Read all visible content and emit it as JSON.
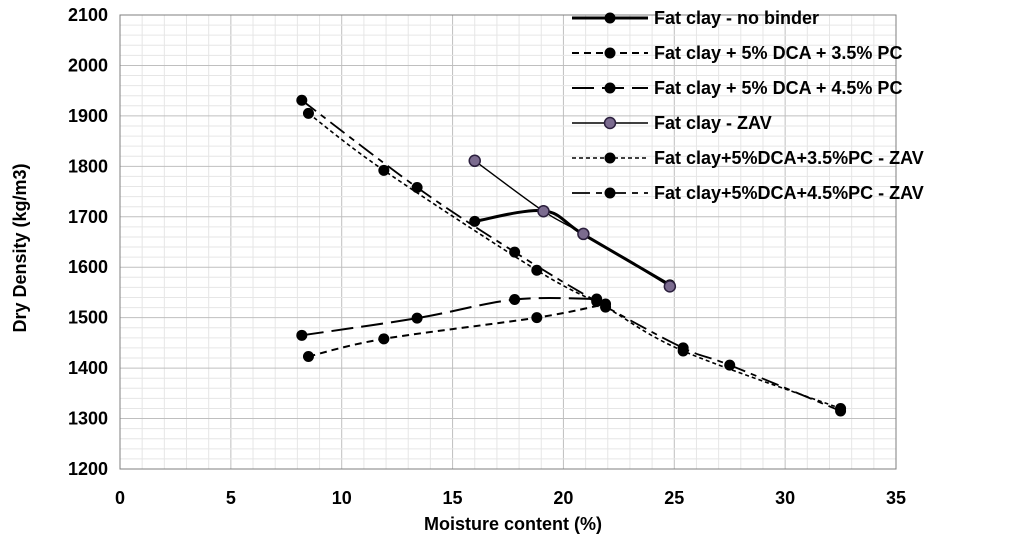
{
  "chart_data": {
    "type": "scatter",
    "title": "",
    "xlabel": "Moisture content (%)",
    "ylabel": "Dry Density (kg/m3)",
    "xlim": [
      0,
      35
    ],
    "ylim": [
      1200,
      2100
    ],
    "xticks": [
      0,
      5,
      10,
      15,
      20,
      25,
      30,
      35
    ],
    "yticks": [
      1200,
      1300,
      1400,
      1500,
      1600,
      1700,
      1800,
      1900,
      2000,
      2100
    ],
    "grid": true,
    "legend_position": "top-right",
    "series": [
      {
        "name": "Fat clay - no binder",
        "style": "solid-thick",
        "marker": "black",
        "x": [
          16.0,
          19.1,
          20.9,
          24.8
        ],
        "y": [
          1691,
          1712,
          1665,
          1565
        ]
      },
      {
        "name": "Fat clay + 5% DCA + 3.5% PC",
        "style": "dashed-short",
        "marker": "black",
        "x": [
          8.5,
          11.9,
          18.8,
          21.9
        ],
        "y": [
          1423,
          1458,
          1500,
          1527
        ]
      },
      {
        "name": "Fat clay + 5% DCA + 4.5% PC",
        "style": "dashed-long",
        "marker": "black",
        "x": [
          8.2,
          13.4,
          17.8,
          21.5
        ],
        "y": [
          1465,
          1499,
          1536,
          1537
        ]
      },
      {
        "name": "Fat clay - ZAV",
        "style": "solid-thin",
        "marker": "purple-outline",
        "x": [
          16.0,
          19.1,
          20.9,
          24.8
        ],
        "y": [
          1811,
          1711,
          1666,
          1562
        ]
      },
      {
        "name": "Fat clay+5%DCA+3.5%PC - ZAV",
        "style": "dotted",
        "marker": "black",
        "x": [
          8.5,
          11.9,
          18.8,
          21.9,
          25.4,
          32.5
        ],
        "y": [
          1905,
          1792,
          1594,
          1521,
          1434,
          1320
        ]
      },
      {
        "name": "Fat clay+5%DCA+4.5%PC - ZAV",
        "style": "dash-dot",
        "marker": "black",
        "x": [
          8.2,
          13.4,
          17.8,
          21.5,
          25.4,
          27.5,
          32.5
        ],
        "y": [
          1931,
          1758,
          1630,
          1532,
          1440,
          1406,
          1315
        ]
      }
    ]
  }
}
